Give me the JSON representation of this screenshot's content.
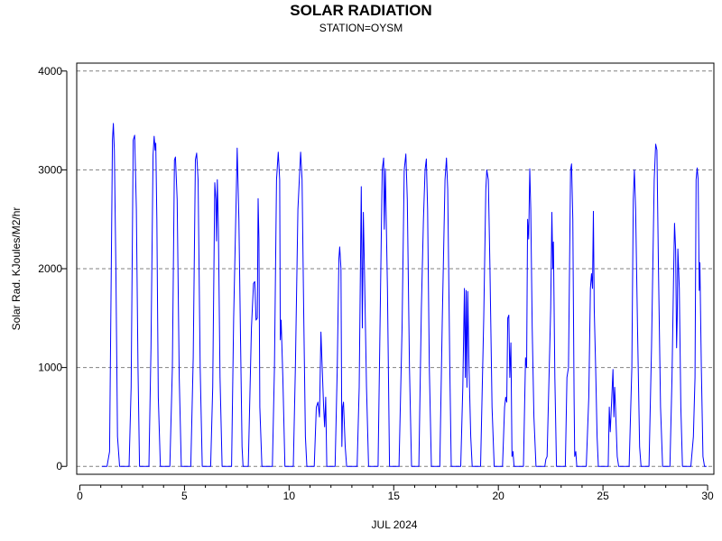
{
  "chart_data": {
    "type": "line",
    "title": "SOLAR RADIATION",
    "subtitle": "STATION=OYSM",
    "xlabel": "JUL 2024",
    "ylabel": "Solar Rad. KJoules/M2/hr",
    "xlim": [
      -0.15,
      30.3
    ],
    "ylim": [
      -80,
      4080
    ],
    "x_ticks": [
      0,
      5,
      10,
      15,
      20,
      25,
      30
    ],
    "x_tick_labels": [
      "0",
      "5",
      "10",
      "15",
      "20",
      "25",
      "30"
    ],
    "x_minor_ticks": [
      1,
      2,
      3,
      4,
      6,
      7,
      8,
      9,
      11,
      12,
      13,
      14,
      16,
      17,
      18,
      19,
      21,
      22,
      23,
      24,
      26,
      27,
      28,
      29
    ],
    "y_ticks": [
      0,
      1000,
      2000,
      3000,
      4000
    ],
    "y_tick_labels": [
      "0",
      "1000",
      "2000",
      "3000",
      "4000"
    ],
    "grid": "horizontal-dashed",
    "line_color": "#0000ff",
    "series": [
      {
        "points": [
          [
            1.05,
            0
          ],
          [
            1.3,
            0
          ],
          [
            1.42,
            150
          ],
          [
            1.5,
            2000
          ],
          [
            1.56,
            3300
          ],
          [
            1.6,
            3470
          ],
          [
            1.65,
            3200
          ],
          [
            1.72,
            2000
          ],
          [
            1.8,
            300
          ],
          [
            1.9,
            0
          ],
          [
            2.35,
            0
          ],
          [
            2.45,
            800
          ],
          [
            2.55,
            3300
          ],
          [
            2.62,
            3350
          ],
          [
            2.7,
            2600
          ],
          [
            2.78,
            1000
          ],
          [
            2.85,
            0
          ],
          [
            3.3,
            0
          ],
          [
            3.4,
            1200
          ],
          [
            3.5,
            3150
          ],
          [
            3.55,
            3340
          ],
          [
            3.6,
            3200
          ],
          [
            3.63,
            3270
          ],
          [
            3.68,
            2500
          ],
          [
            3.75,
            700
          ],
          [
            3.85,
            0
          ],
          [
            4.3,
            0
          ],
          [
            4.42,
            1000
          ],
          [
            4.52,
            3100
          ],
          [
            4.57,
            3130
          ],
          [
            4.65,
            2700
          ],
          [
            4.75,
            900
          ],
          [
            4.85,
            0
          ],
          [
            5.3,
            0
          ],
          [
            5.42,
            1100
          ],
          [
            5.52,
            3100
          ],
          [
            5.58,
            3170
          ],
          [
            5.65,
            2900
          ],
          [
            5.75,
            1000
          ],
          [
            5.85,
            0
          ],
          [
            6.25,
            0
          ],
          [
            6.35,
            800
          ],
          [
            6.45,
            2870
          ],
          [
            6.5,
            2700
          ],
          [
            6.53,
            2280
          ],
          [
            6.57,
            2900
          ],
          [
            6.62,
            2400
          ],
          [
            6.7,
            900
          ],
          [
            6.8,
            0
          ],
          [
            7.25,
            0
          ],
          [
            7.35,
            1500
          ],
          [
            7.42,
            2200
          ],
          [
            7.48,
            2800
          ],
          [
            7.52,
            3220
          ],
          [
            7.6,
            2500
          ],
          [
            7.68,
            1300
          ],
          [
            7.75,
            200
          ],
          [
            7.8,
            0
          ],
          [
            8.05,
            0
          ],
          [
            8.2,
            1400
          ],
          [
            8.3,
            1850
          ],
          [
            8.36,
            1870
          ],
          [
            8.42,
            1480
          ],
          [
            8.48,
            1500
          ],
          [
            8.52,
            2710
          ],
          [
            8.56,
            2300
          ],
          [
            8.6,
            600
          ],
          [
            8.7,
            0
          ],
          [
            9.2,
            0
          ],
          [
            9.3,
            1000
          ],
          [
            9.4,
            2900
          ],
          [
            9.48,
            3180
          ],
          [
            9.55,
            2900
          ],
          [
            9.58,
            1280
          ],
          [
            9.62,
            1480
          ],
          [
            9.7,
            900
          ],
          [
            9.8,
            0
          ],
          [
            10.2,
            0
          ],
          [
            10.3,
            1000
          ],
          [
            10.42,
            2600
          ],
          [
            10.55,
            3180
          ],
          [
            10.62,
            2900
          ],
          [
            10.7,
            1500
          ],
          [
            10.78,
            300
          ],
          [
            10.85,
            0
          ],
          [
            11.2,
            0
          ],
          [
            11.3,
            600
          ],
          [
            11.38,
            650
          ],
          [
            11.45,
            500
          ],
          [
            11.52,
            1360
          ],
          [
            11.58,
            1000
          ],
          [
            11.65,
            600
          ],
          [
            11.7,
            400
          ],
          [
            11.75,
            700
          ],
          [
            11.8,
            0
          ],
          [
            12.2,
            0
          ],
          [
            12.3,
            1000
          ],
          [
            12.38,
            2100
          ],
          [
            12.42,
            2220
          ],
          [
            12.48,
            2000
          ],
          [
            12.52,
            200
          ],
          [
            12.56,
            600
          ],
          [
            12.6,
            650
          ],
          [
            12.68,
            200
          ],
          [
            12.75,
            0
          ],
          [
            13.25,
            0
          ],
          [
            13.35,
            800
          ],
          [
            13.45,
            2830
          ],
          [
            13.5,
            1400
          ],
          [
            13.55,
            2570
          ],
          [
            13.6,
            2000
          ],
          [
            13.7,
            800
          ],
          [
            13.8,
            0
          ],
          [
            14.25,
            0
          ],
          [
            14.35,
            1500
          ],
          [
            14.45,
            3000
          ],
          [
            14.52,
            3120
          ],
          [
            14.55,
            2400
          ],
          [
            14.6,
            3010
          ],
          [
            14.7,
            1800
          ],
          [
            14.8,
            0
          ],
          [
            15.25,
            0
          ],
          [
            15.4,
            1400
          ],
          [
            15.5,
            3000
          ],
          [
            15.58,
            3160
          ],
          [
            15.65,
            2700
          ],
          [
            15.75,
            1000
          ],
          [
            15.85,
            0
          ],
          [
            16.2,
            0
          ],
          [
            16.32,
            1600
          ],
          [
            16.42,
            2500
          ],
          [
            16.5,
            3000
          ],
          [
            16.56,
            3110
          ],
          [
            16.62,
            2600
          ],
          [
            16.7,
            1000
          ],
          [
            16.8,
            0
          ],
          [
            17.2,
            0
          ],
          [
            17.32,
            1500
          ],
          [
            17.45,
            2900
          ],
          [
            17.52,
            3120
          ],
          [
            17.58,
            2800
          ],
          [
            17.68,
            1000
          ],
          [
            17.75,
            0
          ],
          [
            18.2,
            0
          ],
          [
            18.3,
            800
          ],
          [
            18.38,
            1800
          ],
          [
            18.42,
            900
          ],
          [
            18.46,
            1780
          ],
          [
            18.5,
            800
          ],
          [
            18.54,
            1770
          ],
          [
            18.6,
            1000
          ],
          [
            18.68,
            300
          ],
          [
            18.75,
            0
          ],
          [
            19.15,
            0
          ],
          [
            19.3,
            1500
          ],
          [
            19.4,
            2800
          ],
          [
            19.45,
            3000
          ],
          [
            19.52,
            2900
          ],
          [
            19.6,
            2000
          ],
          [
            19.7,
            600
          ],
          [
            19.8,
            0
          ],
          [
            20.2,
            0
          ],
          [
            20.3,
            600
          ],
          [
            20.35,
            700
          ],
          [
            20.4,
            650
          ],
          [
            20.45,
            1500
          ],
          [
            20.5,
            1530
          ],
          [
            20.55,
            900
          ],
          [
            20.6,
            1250
          ],
          [
            20.65,
            100
          ],
          [
            20.7,
            150
          ],
          [
            20.75,
            0
          ],
          [
            21.2,
            0
          ],
          [
            21.3,
            1100
          ],
          [
            21.35,
            1000
          ],
          [
            21.4,
            2500
          ],
          [
            21.45,
            2300
          ],
          [
            21.5,
            3010
          ],
          [
            21.55,
            2600
          ],
          [
            21.62,
            1400
          ],
          [
            21.7,
            500
          ],
          [
            21.8,
            0
          ],
          [
            22.1,
            0
          ],
          [
            22.22,
            0
          ],
          [
            22.27,
            70
          ],
          [
            22.33,
            100
          ],
          [
            22.4,
            700
          ],
          [
            22.5,
            1600
          ],
          [
            22.56,
            2570
          ],
          [
            22.6,
            2000
          ],
          [
            22.63,
            2270
          ],
          [
            22.7,
            900
          ],
          [
            22.78,
            0
          ],
          [
            23.2,
            0
          ],
          [
            23.28,
            900
          ],
          [
            23.35,
            1000
          ],
          [
            23.45,
            3000
          ],
          [
            23.5,
            3060
          ],
          [
            23.56,
            2500
          ],
          [
            23.62,
            700
          ],
          [
            23.65,
            100
          ],
          [
            23.7,
            150
          ],
          [
            23.75,
            0
          ],
          [
            24.2,
            0
          ],
          [
            24.32,
            700
          ],
          [
            24.4,
            1800
          ],
          [
            24.45,
            1950
          ],
          [
            24.5,
            1800
          ],
          [
            24.54,
            2580
          ],
          [
            24.58,
            1600
          ],
          [
            24.65,
            1000
          ],
          [
            24.72,
            300
          ],
          [
            24.78,
            0
          ],
          [
            25.25,
            0
          ],
          [
            25.3,
            600
          ],
          [
            25.35,
            350
          ],
          [
            25.42,
            700
          ],
          [
            25.48,
            980
          ],
          [
            25.52,
            500
          ],
          [
            25.56,
            800
          ],
          [
            25.6,
            600
          ],
          [
            25.68,
            100
          ],
          [
            25.75,
            0
          ],
          [
            26.25,
            0
          ],
          [
            26.38,
            1000
          ],
          [
            26.45,
            2700
          ],
          [
            26.5,
            3000
          ],
          [
            26.56,
            2600
          ],
          [
            26.65,
            1400
          ],
          [
            26.75,
            200
          ],
          [
            26.82,
            0
          ],
          [
            27.2,
            0
          ],
          [
            27.32,
            1200
          ],
          [
            27.45,
            2900
          ],
          [
            27.52,
            3260
          ],
          [
            27.58,
            3200
          ],
          [
            27.65,
            2000
          ],
          [
            27.75,
            600
          ],
          [
            27.85,
            0
          ],
          [
            28.2,
            0
          ],
          [
            28.3,
            900
          ],
          [
            28.38,
            2000
          ],
          [
            28.42,
            2460
          ],
          [
            28.47,
            2200
          ],
          [
            28.52,
            1200
          ],
          [
            28.55,
            1500
          ],
          [
            28.58,
            2200
          ],
          [
            28.65,
            1800
          ],
          [
            28.72,
            600
          ],
          [
            28.8,
            0
          ],
          [
            29.2,
            0
          ],
          [
            29.32,
            300
          ],
          [
            29.4,
            900
          ],
          [
            29.45,
            2900
          ],
          [
            29.5,
            3020
          ],
          [
            29.55,
            2900
          ],
          [
            29.6,
            1780
          ],
          [
            29.63,
            2060
          ],
          [
            29.7,
            1000
          ],
          [
            29.78,
            100
          ],
          [
            29.85,
            0
          ],
          [
            29.95,
            0
          ]
        ]
      }
    ]
  }
}
